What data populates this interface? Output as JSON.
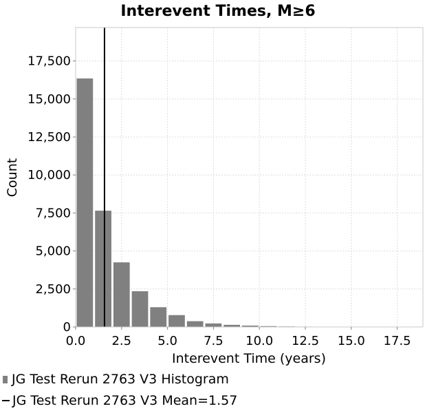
{
  "chart_data": {
    "type": "bar",
    "title": "Interevent Times, M≥6",
    "xlabel": "Interevent Time (years)",
    "ylabel": "Count",
    "xlim": [
      0,
      18.9
    ],
    "ylim": [
      0,
      19700
    ],
    "bin_width": 1.0,
    "x": [
      0.5,
      1.5,
      2.5,
      3.5,
      4.5,
      5.5,
      6.5,
      7.5,
      8.5,
      9.5,
      10.5,
      11.5,
      12.5,
      13.5,
      14.5,
      15.5,
      16.5,
      17.5,
      18.5
    ],
    "values": [
      16350,
      7650,
      4250,
      2350,
      1300,
      780,
      380,
      230,
      140,
      90,
      55,
      35,
      25,
      15,
      10,
      8,
      6,
      4,
      3
    ],
    "xticks": [
      0.0,
      2.5,
      5.0,
      7.5,
      10.0,
      12.5,
      15.0,
      17.5
    ],
    "xtick_labels": [
      "0.0",
      "2.5",
      "5.0",
      "7.5",
      "10.0",
      "12.5",
      "15.0",
      "17.5"
    ],
    "yticks": [
      0,
      2500,
      5000,
      7500,
      10000,
      12500,
      15000,
      17500
    ],
    "ytick_labels": [
      "0",
      "2,500",
      "5,000",
      "7,500",
      "10,000",
      "12,500",
      "15,000",
      "17,500"
    ],
    "mean": 1.57,
    "grid": true,
    "legend_position": "bottom-left",
    "series": [
      {
        "name": "JG Test Rerun 2763 V3 Histogram",
        "color": "#808080"
      },
      {
        "name": "JG Test Rerun 2763 V3 Mean=1.57",
        "color": "#000000"
      }
    ]
  }
}
